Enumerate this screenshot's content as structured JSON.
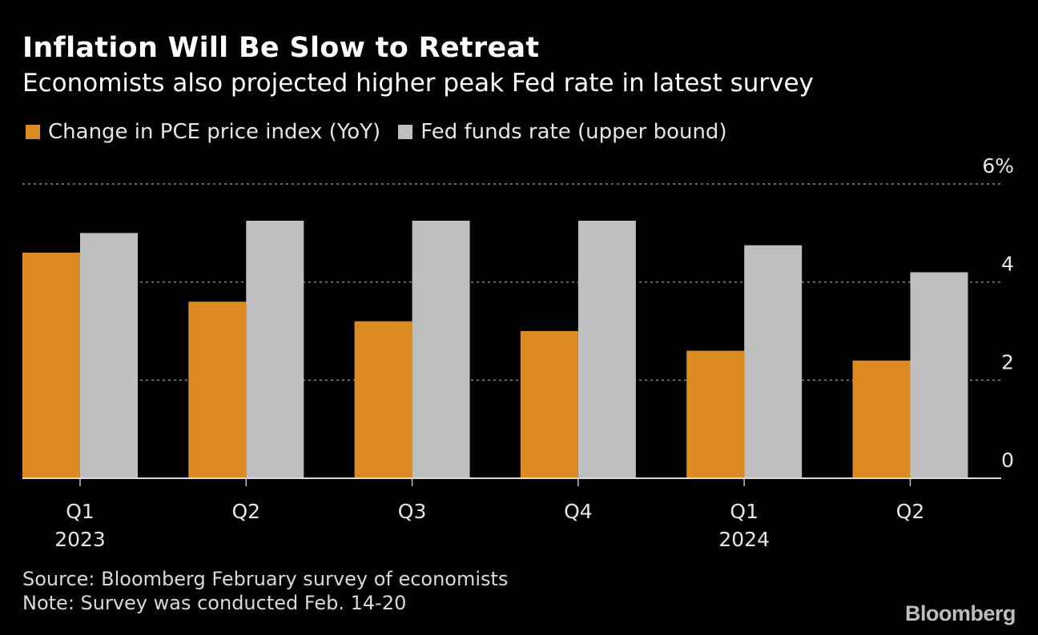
{
  "colors": {
    "pce": "#dc8a24",
    "fed": "#bfbfbf",
    "background": "#000000",
    "grid": "#8a8a8a"
  },
  "chart_data": {
    "type": "bar",
    "title": "Inflation Will Be Slow to Retreat",
    "subtitle": "Economists also projected higher peak Fed rate in latest survey",
    "categories": [
      "Q1",
      "Q2",
      "Q3",
      "Q4",
      "Q1",
      "Q2"
    ],
    "year_labels": [
      "2023",
      "",
      "",
      "",
      "2024",
      ""
    ],
    "series": [
      {
        "name": "Change in PCE price index (YoY)",
        "values": [
          4.6,
          3.6,
          3.2,
          3.0,
          2.6,
          2.4
        ]
      },
      {
        "name": "Fed funds rate (upper bound)",
        "values": [
          5.0,
          5.25,
          5.25,
          5.25,
          4.75,
          4.2
        ]
      }
    ],
    "ylim": [
      0,
      6
    ],
    "yticks": [
      {
        "value": 6,
        "label": "6%"
      },
      {
        "value": 4,
        "label": "4"
      },
      {
        "value": 2,
        "label": "2"
      },
      {
        "value": 0,
        "label": "0"
      }
    ],
    "grid": true,
    "legend_position": "top-left"
  },
  "footer": {
    "source": "Source: Bloomberg February survey of economists",
    "note": "Note: Survey was conducted Feb. 14-20"
  },
  "brand": "Bloomberg"
}
